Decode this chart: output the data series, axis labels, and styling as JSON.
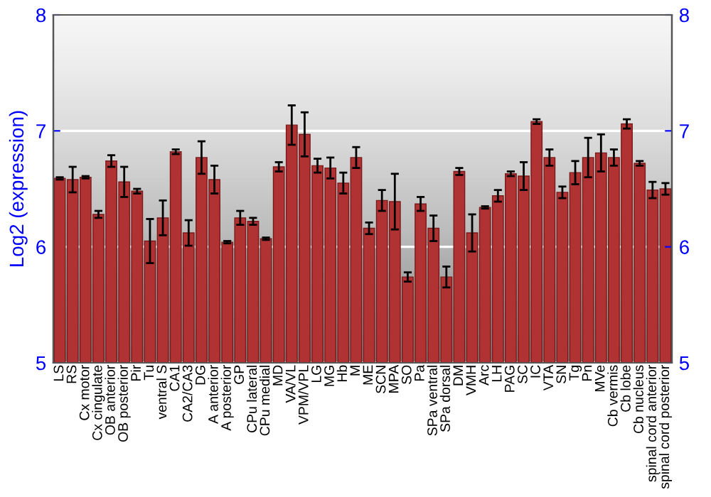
{
  "chart_data": {
    "type": "bar",
    "ylabel": "Log2 (expression)",
    "categories": [
      "LS",
      "RS",
      "Cx motor",
      "Cx cingulate",
      "OB anterior",
      "OB posterior",
      "Pir",
      "Tu",
      "ventral S",
      "CA1",
      "CA2/CA3",
      "DG",
      "A anterior",
      "A posterior",
      "GP",
      "CPu lateral",
      "CPu medial",
      "MD",
      "VA/VL",
      "VPM/VPL",
      "LG",
      "MG",
      "Hb",
      "M",
      "ME",
      "SCN",
      "MPA",
      "SO",
      "Pa",
      "SPa ventral",
      "SPa dorsal",
      "DM",
      "VMH",
      "Arc",
      "LH",
      "PAG",
      "SC",
      "IC",
      "VTA",
      "SN",
      "Tg",
      "Pn",
      "MVe",
      "Cb vermis",
      "Cb lobe",
      "Cb nucleus",
      "spinal cord anterior",
      "spinal cord posterior"
    ],
    "series": [
      {
        "color": "#b03232",
        "values": [
          6.59,
          6.58,
          6.6,
          6.28,
          6.74,
          6.56,
          6.48,
          6.05,
          6.25,
          6.82,
          6.12,
          6.77,
          6.58,
          6.04,
          6.25,
          6.22,
          6.07,
          6.69,
          7.05,
          6.97,
          6.7,
          6.68,
          6.55,
          6.77,
          6.16,
          6.4,
          6.39,
          5.74,
          6.37,
          6.16,
          5.74,
          6.65,
          6.12,
          6.34,
          6.44,
          6.63,
          6.61,
          7.08,
          6.77,
          6.47,
          6.64,
          6.77,
          6.81,
          6.77,
          7.06,
          6.72,
          6.49,
          6.5
        ],
        "errors": [
          0.01,
          0.11,
          0.01,
          0.03,
          0.05,
          0.13,
          0.02,
          0.19,
          0.15,
          0.02,
          0.11,
          0.14,
          0.12,
          0.01,
          0.06,
          0.03,
          0.01,
          0.04,
          0.17,
          0.19,
          0.06,
          0.09,
          0.09,
          0.09,
          0.05,
          0.09,
          0.24,
          0.04,
          0.06,
          0.11,
          0.09,
          0.03,
          0.16,
          0.01,
          0.05,
          0.02,
          0.12,
          0.02,
          0.07,
          0.05,
          0.1,
          0.17,
          0.16,
          0.07,
          0.04,
          0.02,
          0.07,
          0.05
        ]
      }
    ],
    "ylim": [
      5,
      8
    ],
    "yticks": [
      5,
      6,
      7,
      8
    ],
    "y2lim": [
      5,
      8
    ],
    "y2ticks": [
      5,
      6,
      7,
      8
    ],
    "grid": "y",
    "legend": false
  }
}
